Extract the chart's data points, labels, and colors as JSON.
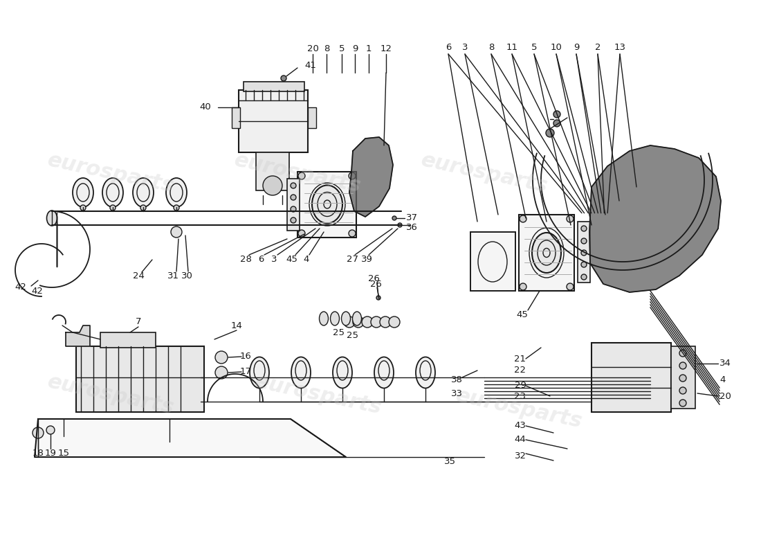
{
  "background_color": "#ffffff",
  "watermark_text": "eurosparts",
  "watermark_color": "#c8c8c8",
  "watermark_alpha": 0.3,
  "figsize": [
    11.0,
    8.0
  ],
  "dpi": 100,
  "line_color": "#1a1a1a",
  "label_fontsize": 9.5,
  "housing_color": "#606060",
  "housing_alpha": 0.75,
  "shading_color": "#a0a0a0",
  "shading_alpha": 0.5
}
